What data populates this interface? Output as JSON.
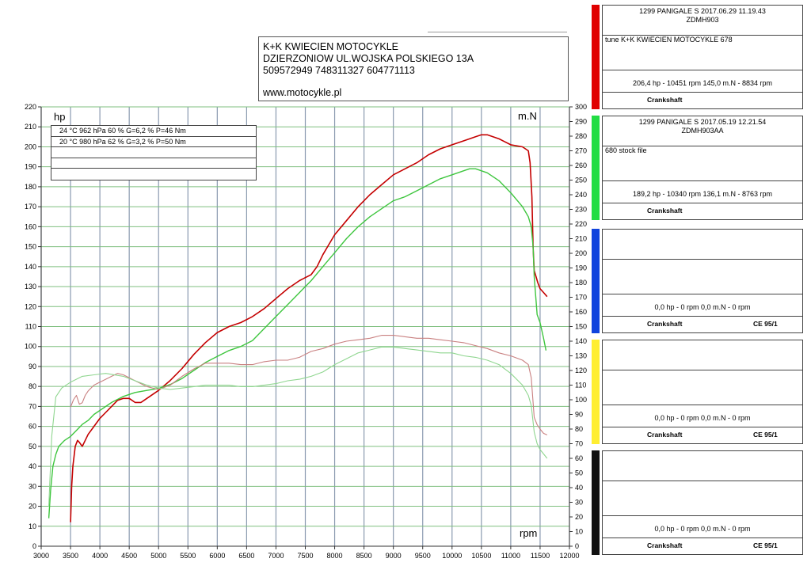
{
  "header": {
    "lines": [
      "K+K KWIECIEN MOTOCYKLE",
      "DZIERZONIOW UL.WOJSKA POLSKIEGO 13A",
      "509572949 748311327 604771113",
      "www.motocykle.pl"
    ]
  },
  "conditions": [
    "24 °C   962 hPa   60 %   G=6,2 %   P=46 Nm",
    "20 °C   980 hPa   62 %   G=3,2 %   P=50 Nm"
  ],
  "panels": [
    {
      "color": "#e00000",
      "title": "1299 PANIGALE S   2017.06.29 11.19.43",
      "vin": "ZDMH903",
      "desc": "tune K+K KWIECIEN MOTOCYKLE 678",
      "result": "206,4 hp - 10451 rpm     145,0 m.N - 8834 rpm",
      "footer": "Crankshaft",
      "standard": ""
    },
    {
      "color": "#22dd44",
      "title": "1299 PANIGALE S   2017.05.19 12.21.54",
      "vin": "ZDMH903AA",
      "desc": "680 stock file",
      "result": "189,2 hp - 10340 rpm     136,1 m.N - 8763 rpm",
      "footer": "Crankshaft",
      "standard": ""
    },
    {
      "color": "#1144dd",
      "title": "",
      "vin": "",
      "desc": "",
      "result": "0,0 hp - 0 rpm     0,0 m.N - 0 rpm",
      "footer": "Crankshaft",
      "standard": "CE 95/1"
    },
    {
      "color": "#ffee33",
      "title": "",
      "vin": "",
      "desc": "",
      "result": "0,0 hp - 0 rpm     0,0 m.N - 0 rpm",
      "footer": "Crankshaft",
      "standard": "CE 95/1"
    },
    {
      "color": "#111111",
      "title": "",
      "vin": "",
      "desc": "",
      "result": "0,0 hp - 0 rpm     0,0 m.N - 0 rpm",
      "footer": "Crankshaft",
      "standard": "CE 95/1"
    }
  ],
  "chart_data": {
    "type": "line",
    "ylabel": "hp",
    "y2label": "m.N",
    "xlabel": "rpm",
    "xlim": [
      3000,
      12000
    ],
    "x_ticks": [
      3000,
      3500,
      4000,
      4500,
      5000,
      5500,
      6000,
      6500,
      7000,
      7500,
      8000,
      8500,
      9000,
      9500,
      10000,
      10500,
      11000,
      11500,
      12000
    ],
    "ylim": [
      0,
      220
    ],
    "y_ticks": [
      0,
      10,
      20,
      30,
      40,
      50,
      60,
      70,
      80,
      90,
      100,
      110,
      120,
      130,
      140,
      150,
      160,
      170,
      180,
      190,
      200,
      210,
      220
    ],
    "y2lim": [
      0,
      300
    ],
    "y2_ticks": [
      0,
      10,
      20,
      30,
      40,
      50,
      60,
      70,
      80,
      90,
      100,
      110,
      120,
      130,
      140,
      150,
      160,
      170,
      180,
      190,
      200,
      210,
      220,
      230,
      240,
      250,
      260,
      270,
      280,
      290,
      300
    ],
    "grid": true,
    "colors": {
      "tuned_power": "#c40000",
      "stock_power": "#3fc63f",
      "tuned_torque": "#c98080",
      "stock_torque": "#8fd68f",
      "grid": "#7fbf7f",
      "vgrid": "#8a9ab0"
    },
    "series": [
      {
        "key": "tuned_power",
        "axis": "left",
        "x": [
          3500,
          3520,
          3540,
          3560,
          3580,
          3620,
          3650,
          3700,
          3750,
          3800,
          3900,
          4000,
          4100,
          4200,
          4300,
          4400,
          4500,
          4600,
          4700,
          4800,
          5000,
          5200,
          5400,
          5600,
          5800,
          6000,
          6200,
          6400,
          6600,
          6800,
          7000,
          7200,
          7400,
          7600,
          7700,
          7800,
          7900,
          8000,
          8200,
          8400,
          8600,
          8800,
          9000,
          9200,
          9400,
          9600,
          9800,
          10000,
          10200,
          10400,
          10500,
          10600,
          10800,
          11000,
          11200,
          11300,
          11330,
          11360,
          11380,
          11400,
          11430,
          11460,
          11500,
          11560,
          11620
        ],
        "y": [
          12,
          30,
          40,
          45,
          50,
          53,
          52,
          50,
          53,
          56,
          60,
          64,
          67,
          70,
          73,
          74,
          74,
          72,
          72,
          74,
          78,
          83,
          89,
          96,
          102,
          107,
          110,
          112,
          115,
          119,
          124,
          129,
          133,
          136,
          140,
          146,
          151,
          156,
          163,
          170,
          176,
          181,
          186,
          189,
          192,
          196,
          199,
          201,
          203,
          205,
          206,
          206,
          204,
          201,
          200,
          198,
          192,
          175,
          150,
          138,
          135,
          132,
          129,
          127,
          125
        ]
      },
      {
        "key": "stock_power",
        "axis": "left",
        "x": [
          3130,
          3160,
          3200,
          3250,
          3300,
          3400,
          3500,
          3600,
          3700,
          3800,
          3900,
          4000,
          4200,
          4400,
          4600,
          4800,
          5000,
          5200,
          5400,
          5600,
          5800,
          6000,
          6200,
          6400,
          6600,
          6800,
          7000,
          7200,
          7400,
          7600,
          7800,
          8000,
          8200,
          8400,
          8600,
          8800,
          9000,
          9200,
          9400,
          9600,
          9800,
          10000,
          10200,
          10300,
          10400,
          10600,
          10800,
          11000,
          11200,
          11300,
          11350,
          11380,
          11400,
          11450,
          11500,
          11560,
          11600
        ],
        "y": [
          14,
          28,
          40,
          46,
          50,
          53,
          55,
          58,
          61,
          63,
          66,
          68,
          72,
          75,
          77,
          78,
          79,
          81,
          84,
          88,
          92,
          95,
          98,
          100,
          103,
          109,
          115,
          121,
          127,
          133,
          140,
          147,
          154,
          160,
          165,
          169,
          173,
          175,
          178,
          181,
          184,
          186,
          188,
          189,
          189,
          187,
          183,
          177,
          170,
          165,
          160,
          150,
          135,
          116,
          112,
          104,
          98
        ]
      },
      {
        "key": "tuned_torque",
        "axis": "right",
        "x": [
          3500,
          3550,
          3600,
          3650,
          3700,
          3750,
          3800,
          3900,
          4000,
          4200,
          4300,
          4400,
          4600,
          4800,
          5000,
          5200,
          5400,
          5600,
          5800,
          6000,
          6200,
          6400,
          6600,
          6800,
          7000,
          7200,
          7400,
          7600,
          7800,
          8000,
          8200,
          8400,
          8600,
          8800,
          9000,
          9200,
          9400,
          9600,
          9800,
          10000,
          10200,
          10400,
          10600,
          10800,
          11000,
          11200,
          11300,
          11350,
          11400,
          11450,
          11500,
          11560,
          11620
        ],
        "y": [
          95,
          100,
          103,
          97,
          98,
          103,
          106,
          110,
          112,
          116,
          118,
          117,
          113,
          109,
          107,
          110,
          116,
          121,
          125,
          125,
          125,
          124,
          124,
          126,
          127,
          127,
          129,
          133,
          135,
          138,
          140,
          141,
          142,
          144,
          144,
          143,
          142,
          142,
          141,
          140,
          139,
          137,
          135,
          132,
          130,
          127,
          124,
          115,
          88,
          83,
          80,
          77,
          76
        ]
      },
      {
        "key": "stock_torque",
        "axis": "right",
        "x": [
          3130,
          3180,
          3250,
          3350,
          3500,
          3700,
          3900,
          4100,
          4400,
          4600,
          4800,
          5000,
          5200,
          5400,
          5600,
          5800,
          6000,
          6200,
          6400,
          6600,
          6800,
          7000,
          7200,
          7400,
          7600,
          7800,
          8000,
          8200,
          8400,
          8600,
          8800,
          9000,
          9200,
          9400,
          9600,
          9800,
          10000,
          10200,
          10400,
          10600,
          10800,
          11000,
          11200,
          11300,
          11350,
          11400,
          11450,
          11500,
          11560,
          11620
        ],
        "y": [
          27,
          75,
          102,
          108,
          112,
          116,
          117,
          118,
          116,
          113,
          110,
          108,
          107,
          108,
          109,
          110,
          110,
          110,
          109,
          109,
          110,
          111,
          113,
          114,
          116,
          119,
          124,
          128,
          132,
          134,
          136,
          136,
          135,
          134,
          133,
          132,
          132,
          130,
          129,
          127,
          124,
          118,
          110,
          103,
          96,
          78,
          70,
          66,
          63,
          60
        ]
      }
    ]
  }
}
